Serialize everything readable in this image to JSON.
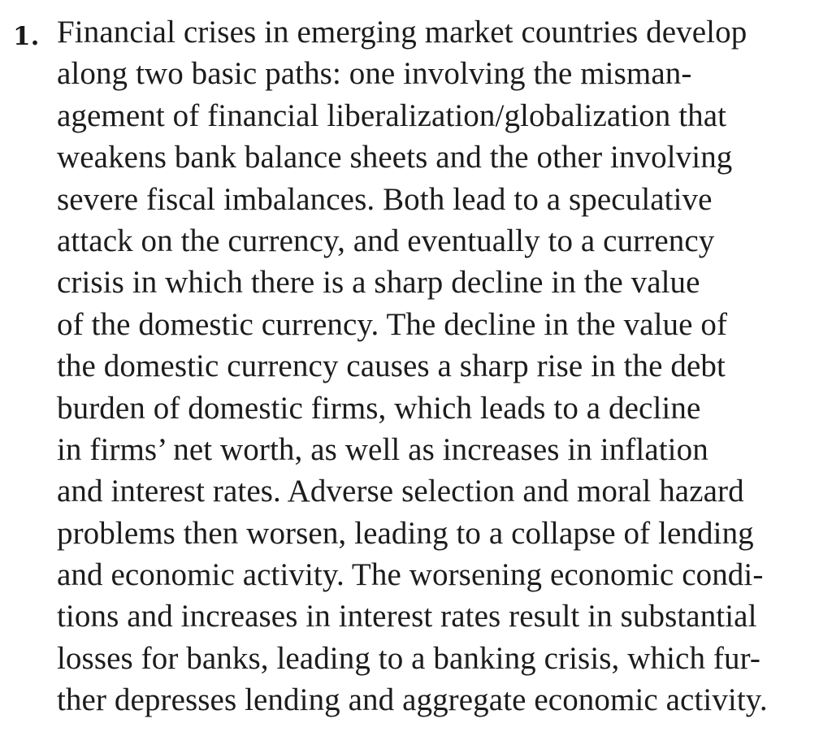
{
  "item": {
    "number": "1.",
    "lines": [
      "Financial crises in emerging market countries develop",
      "along two basic paths: one involving the misman-",
      "agement of financial liberalization/globalization that",
      "weakens bank balance sheets and the other involving",
      "severe fiscal imbalances. Both lead to a speculative",
      "attack on the currency, and eventually to a currency",
      "crisis in which there is a sharp decline in the value",
      "of the domestic currency. The decline in the value of",
      "the domestic currency causes a sharp rise in the debt",
      "burden of domestic firms, which leads to a decline",
      "in firms’ net worth, as well as increases in inflation",
      "and interest rates. Adverse selection and moral hazard",
      "problems then worsen, leading to a collapse of lending",
      "and economic activity. The worsening economic condi-",
      "tions and increases in interest rates result in substantial",
      "losses for banks, leading to a banking crisis, which fur-",
      "ther depresses lending and aggregate economic activity."
    ]
  }
}
